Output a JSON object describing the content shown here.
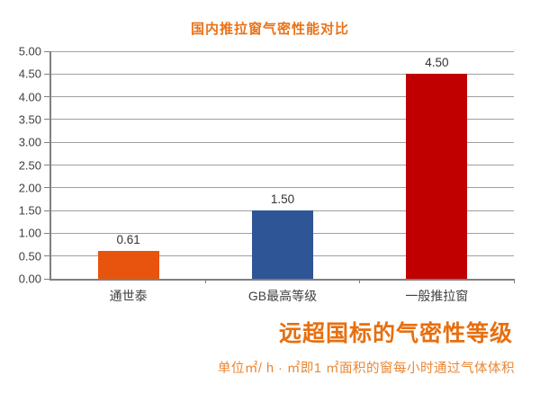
{
  "chart_data": {
    "type": "bar",
    "title": "国内推拉窗气密性能对比",
    "categories": [
      "通世泰",
      "GB最高等级",
      "一般推拉窗"
    ],
    "values": [
      0.61,
      1.5,
      4.5
    ],
    "value_labels": [
      "0.61",
      "1.50",
      "4.50"
    ],
    "bar_colors": [
      "#E8540E",
      "#2E5596",
      "#C00000"
    ],
    "xlabel": "",
    "ylabel": "",
    "ylim": [
      0,
      5
    ],
    "ytick_step": 0.5,
    "ytick_labels": [
      "0.00",
      "0.50",
      "1.00",
      "1.50",
      "2.00",
      "2.50",
      "3.00",
      "3.50",
      "4.00",
      "4.50",
      "5.00"
    ],
    "grid": true,
    "legend": "none"
  },
  "annotations": {
    "tagline": "远超国标的气密性等级",
    "unit_note": "单位㎡/ h · ㎡即1 ㎡面积的窗每小时通过气体体积"
  },
  "colors": {
    "title_orange": "#E8731A",
    "tagline_orange": "#E76F10",
    "note_orange": "#E98634",
    "grid_line": "#A0A0A0",
    "axis_line": "#7F7F7F",
    "tick_label_text": "#404040",
    "value_label_text": "#333333",
    "background": "#FFFFFF"
  }
}
